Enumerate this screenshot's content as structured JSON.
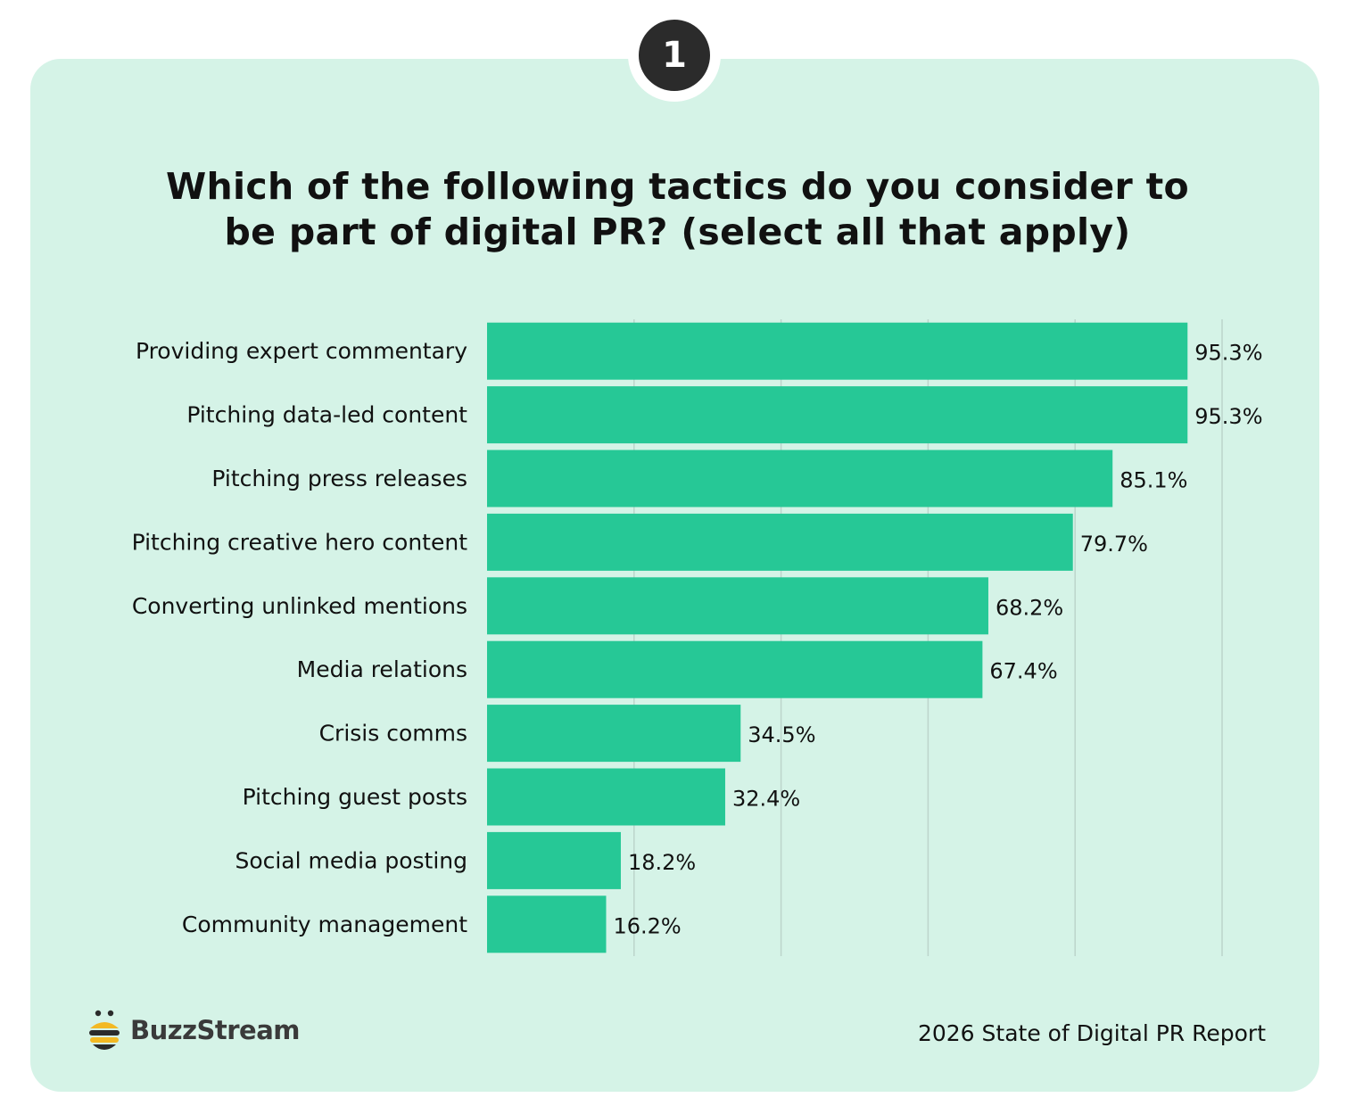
{
  "badge": "1",
  "title_lines": [
    "Which of the following tactics do you consider to",
    "be part of digital PR? (select all that apply)"
  ],
  "brand": {
    "name": "BuzzStream",
    "logo_icon": "bee-icon",
    "logo_colors": [
      "#2b2b2b",
      "#f3b923"
    ]
  },
  "source": "2026 State of Digital PR Report",
  "colors": {
    "bar": "#26c896",
    "card": "#d5f3e7",
    "grid": "#bcd5cb",
    "badge": "#2b2b2b"
  },
  "chart_data": {
    "type": "bar",
    "orientation": "horizontal",
    "title": "Which of the following tactics do you consider to be part of digital PR? (select all that apply)",
    "categories": [
      "Providing expert commentary",
      "Pitching data-led content",
      "Pitching press releases",
      "Pitching creative hero content",
      "Converting unlinked mentions",
      "Media relations",
      "Crisis comms",
      "Pitching guest posts",
      "Social media posting",
      "Community management"
    ],
    "values": [
      95.3,
      95.3,
      85.1,
      79.7,
      68.2,
      67.4,
      34.5,
      32.4,
      18.2,
      16.2
    ],
    "value_labels": [
      "95.3%",
      "95.3%",
      "85.1%",
      "79.7%",
      "68.2%",
      "67.4%",
      "34.5%",
      "32.4%",
      "18.2%",
      "16.2%"
    ],
    "xlim": [
      0,
      100
    ],
    "x_gridlines": [
      20,
      40,
      60,
      80,
      100
    ],
    "grid": true,
    "legend": "none",
    "xlabel": "",
    "ylabel": ""
  }
}
